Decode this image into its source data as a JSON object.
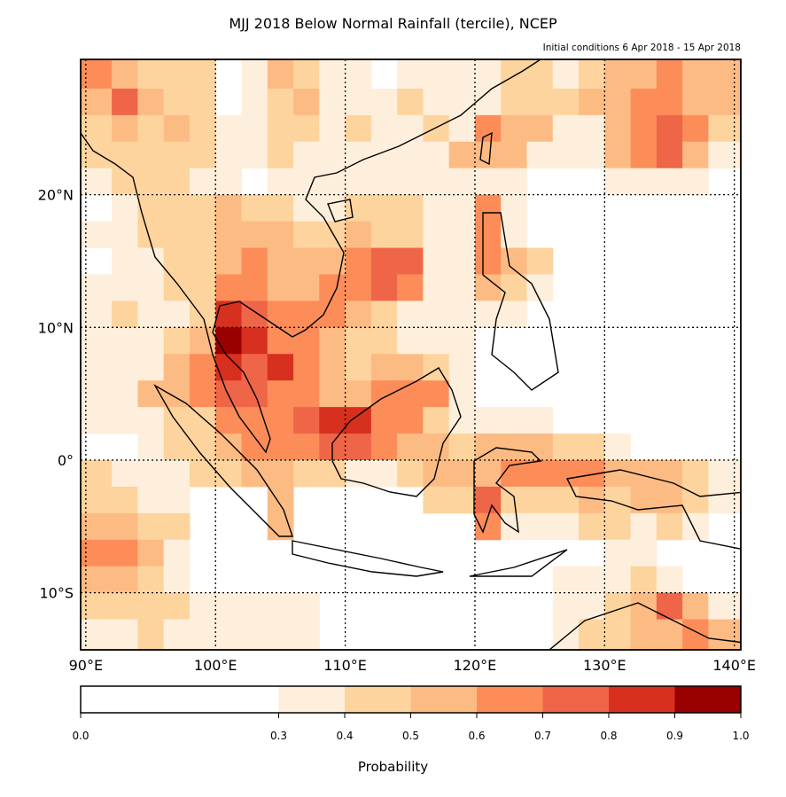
{
  "title": "MJJ 2018 Below Normal Rainfall (tercile), NCEP",
  "subtitle": "Initial conditions 6 Apr 2018 - 15 Apr 2018",
  "colorbar": {
    "label": "Probability",
    "ticks": [
      "0.0",
      "0.3",
      "0.4",
      "0.5",
      "0.6",
      "0.7",
      "0.8",
      "0.9",
      "1.0"
    ],
    "bounds": [
      0.0,
      0.3,
      0.4,
      0.5,
      0.6,
      0.7,
      0.8,
      0.9,
      1.0
    ],
    "colors": [
      "#ffffff",
      "#feefdc",
      "#fdd49e",
      "#fdbb84",
      "#fc8d59",
      "#ef6548",
      "#d7301f",
      "#990000"
    ]
  },
  "chart_data": {
    "type": "heatmap",
    "title": "MJJ 2018 Below Normal Rainfall (tercile), NCEP",
    "subtitle": "Initial conditions 6 Apr 2018 - 15 Apr 2018",
    "colorbar_label": "Probability",
    "lon_range": [
      89.6,
      140.5
    ],
    "lat_range": [
      -14.3,
      30.2
    ],
    "lon_ticks": [
      "90°E",
      "100°E",
      "110°E",
      "120°E",
      "130°E",
      "140°E"
    ],
    "lon_tick_values": [
      90,
      100,
      110,
      120,
      130,
      140
    ],
    "lat_ticks": [
      "20°N",
      "10°N",
      "0°",
      "10°S"
    ],
    "lat_tick_values": [
      20,
      10,
      0,
      -10
    ],
    "gridlines": true,
    "cell_deg": 2,
    "grid_origin": {
      "lon_west": 90,
      "lat_north": 30
    },
    "grid_encoding": "each digit = probability class index into colorbar bounds (0: 0.0-0.3 ... 7: 0.9-1.0); rows north to south, columns west to east",
    "grid": [
      "4322201321101111221233433",
      "3532201231112111222334433",
      "2323211221211214331134542",
      "2222211211111133311134531",
      "1222110111111111100011110",
      "0122232211222114100000000",
      "1122233322322114100000000",
      "0112234333455114320000000",
      "1112244334454113210000000",
      "1211265444321111100000000",
      "1112376443221110000000000",
      "1113465643233210000000000",
      "1133455443344410000000000",
      "1112244456644211110000000",
      "0012234445543323332210000",
      "2111223322112333444433321",
      "2211000300000225222323321",
      "3322000300000004111221210",
      "4431000000000000000011000",
      "3321000000000000001112100",
      "2222111110000000001123531",
      "1121111110000000001223343"
    ]
  }
}
